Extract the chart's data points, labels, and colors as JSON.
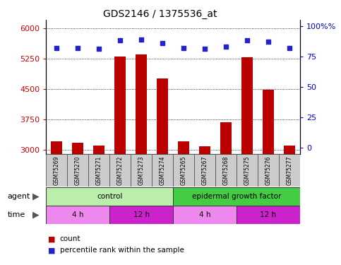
{
  "title": "GDS2146 / 1375536_at",
  "samples": [
    "GSM75269",
    "GSM75270",
    "GSM75271",
    "GSM75272",
    "GSM75273",
    "GSM75274",
    "GSM75265",
    "GSM75267",
    "GSM75268",
    "GSM75275",
    "GSM75276",
    "GSM75277"
  ],
  "counts": [
    3200,
    3175,
    3100,
    5300,
    5350,
    4750,
    3200,
    3075,
    3680,
    5280,
    4470,
    3100
  ],
  "percentiles": [
    82,
    82,
    81,
    88,
    89,
    86,
    82,
    81,
    83,
    88,
    87,
    82
  ],
  "ylim_left": [
    2900,
    6200
  ],
  "ylim_right": [
    -5,
    105
  ],
  "yticks_left": [
    3000,
    3750,
    4500,
    5250,
    6000
  ],
  "yticks_right": [
    0,
    25,
    50,
    75,
    100
  ],
  "bar_color": "#bb0000",
  "dot_color": "#2222cc",
  "agent_groups": [
    {
      "label": "control",
      "start": 0,
      "end": 6,
      "color": "#bbeeaa"
    },
    {
      "label": "epidermal growth factor",
      "start": 6,
      "end": 12,
      "color": "#44cc44"
    }
  ],
  "time_groups": [
    {
      "label": "4 h",
      "start": 0,
      "end": 3,
      "color": "#ee88ee"
    },
    {
      "label": "12 h",
      "start": 3,
      "end": 6,
      "color": "#cc22cc"
    },
    {
      "label": "4 h",
      "start": 6,
      "end": 9,
      "color": "#ee88ee"
    },
    {
      "label": "12 h",
      "start": 9,
      "end": 12,
      "color": "#cc22cc"
    }
  ],
  "legend_count_color": "#bb0000",
  "legend_dot_color": "#2222cc",
  "xlabel_agent": "agent",
  "xlabel_time": "time",
  "tick_label_color_left": "#cc0000",
  "tick_label_color_right": "#0000cc",
  "bg_color": "#ffffff",
  "plot_bg_color": "#ffffff",
  "sample_box_color": "#cccccc",
  "bar_bottom": 2900
}
